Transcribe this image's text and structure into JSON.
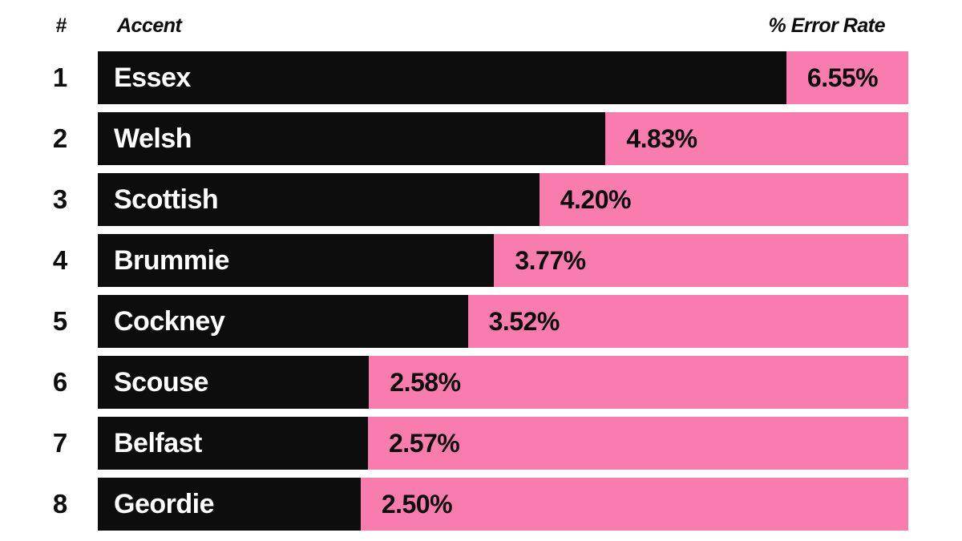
{
  "chart_data": {
    "type": "bar",
    "orientation": "horizontal",
    "title": "",
    "legend": "none",
    "grid": false,
    "xlim": [
      0,
      7.71
    ],
    "unit": "%",
    "columns": {
      "rank_header": "#",
      "accent_header": "Accent",
      "value_header": "% Error Rate"
    },
    "categories": [
      "Essex",
      "Welsh",
      "Scottish",
      "Brummie",
      "Cockney",
      "Scouse",
      "Belfast",
      "Geordie"
    ],
    "values": [
      6.55,
      4.83,
      4.2,
      3.77,
      3.52,
      2.58,
      2.57,
      2.5
    ],
    "rows": [
      {
        "rank": "1",
        "accent": "Essex",
        "value": 6.55,
        "value_label": "6.55%"
      },
      {
        "rank": "2",
        "accent": "Welsh",
        "value": 4.83,
        "value_label": "4.83%"
      },
      {
        "rank": "3",
        "accent": "Scottish",
        "value": 4.2,
        "value_label": "4.20%"
      },
      {
        "rank": "4",
        "accent": "Brummie",
        "value": 3.77,
        "value_label": "3.77%"
      },
      {
        "rank": "5",
        "accent": "Cockney",
        "value": 3.52,
        "value_label": "3.52%"
      },
      {
        "rank": "6",
        "accent": "Scouse",
        "value": 2.58,
        "value_label": "2.58%"
      },
      {
        "rank": "7",
        "accent": "Belfast",
        "value": 2.57,
        "value_label": "2.57%"
      },
      {
        "rank": "8",
        "accent": "Geordie",
        "value": 2.5,
        "value_label": "2.50%"
      }
    ],
    "colors": {
      "bar_fill": "#0d0d0d",
      "track": "#f87cad",
      "bar_text": "#ffffff",
      "value_text": "#0d0d0d",
      "header_text": "#0d0d0d",
      "background": "#ffffff"
    }
  }
}
